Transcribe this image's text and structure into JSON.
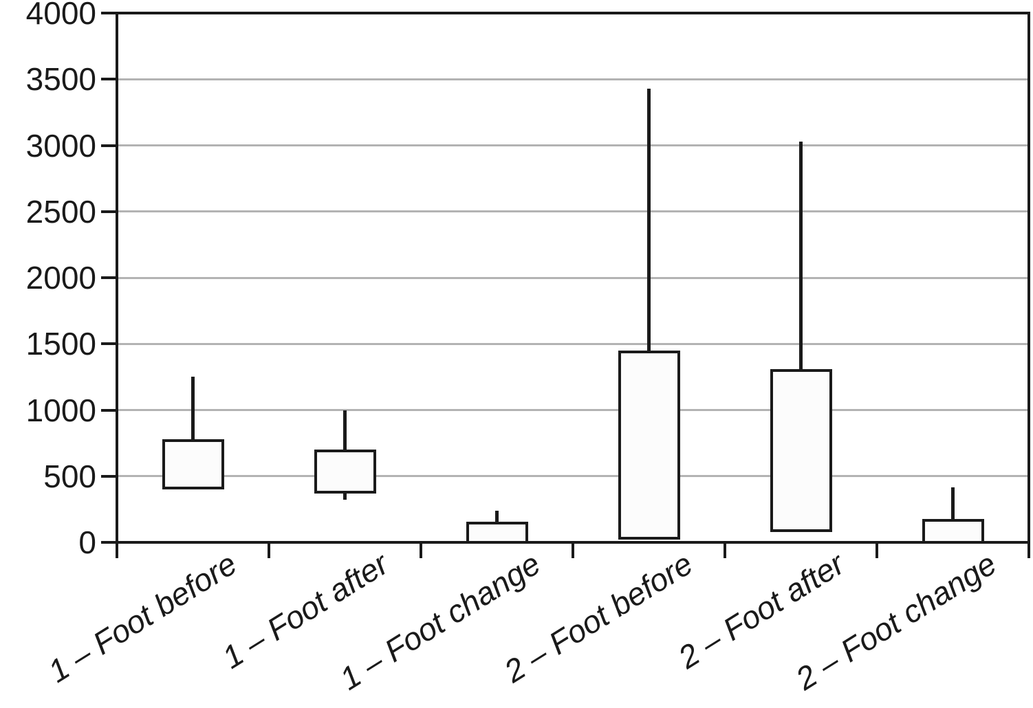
{
  "chart_data": {
    "type": "boxplot",
    "title": "",
    "xlabel": "",
    "ylabel": "",
    "categories": [
      "1 – Foot before",
      "1 – Foot after",
      "1 – Foot change",
      "2 – Foot before",
      "2 – Foot after",
      "2 – Foot change"
    ],
    "boxes": [
      {
        "label": "1 – Foot before",
        "whisker_low": null,
        "q1": 410,
        "q3": 770,
        "whisker_high": 1250
      },
      {
        "label": "1 – Foot after",
        "whisker_low": 320,
        "q1": 380,
        "q3": 690,
        "whisker_high": 1000
      },
      {
        "label": "1 – Foot change",
        "whisker_low": null,
        "q1": 0,
        "q3": 145,
        "whisker_high": 240
      },
      {
        "label": "2 – Foot before",
        "whisker_low": null,
        "q1": 30,
        "q3": 1440,
        "whisker_high": 3430
      },
      {
        "label": "2 – Foot after",
        "whisker_low": null,
        "q1": 90,
        "q3": 1300,
        "whisker_high": 3030
      },
      {
        "label": "2 – Foot change",
        "whisker_low": null,
        "q1": 0,
        "q3": 165,
        "whisker_high": 415
      }
    ],
    "y_axis": {
      "min": 0,
      "max": 4000,
      "step": 500,
      "tick_labels": [
        "0",
        "500",
        "1000",
        "1500",
        "2000",
        "2500",
        "3000",
        "3500",
        "4000"
      ]
    },
    "layout": {
      "grid": "horizontal",
      "gridline_values": [
        500,
        1000,
        1500,
        2000,
        2500,
        3000,
        3500
      ],
      "legend": false,
      "median_line_shown": false,
      "whisker_caps": false,
      "category_label_rotation_deg": -32,
      "ylim": [
        0,
        4000
      ]
    },
    "colors": {
      "frame": "#1a1a1a",
      "gridline": "#b3b3b3",
      "box_fill": "#fcfcfc",
      "box_border": "#1a1a1a",
      "text": "#1a1a1a",
      "background": "#ffffff"
    }
  }
}
